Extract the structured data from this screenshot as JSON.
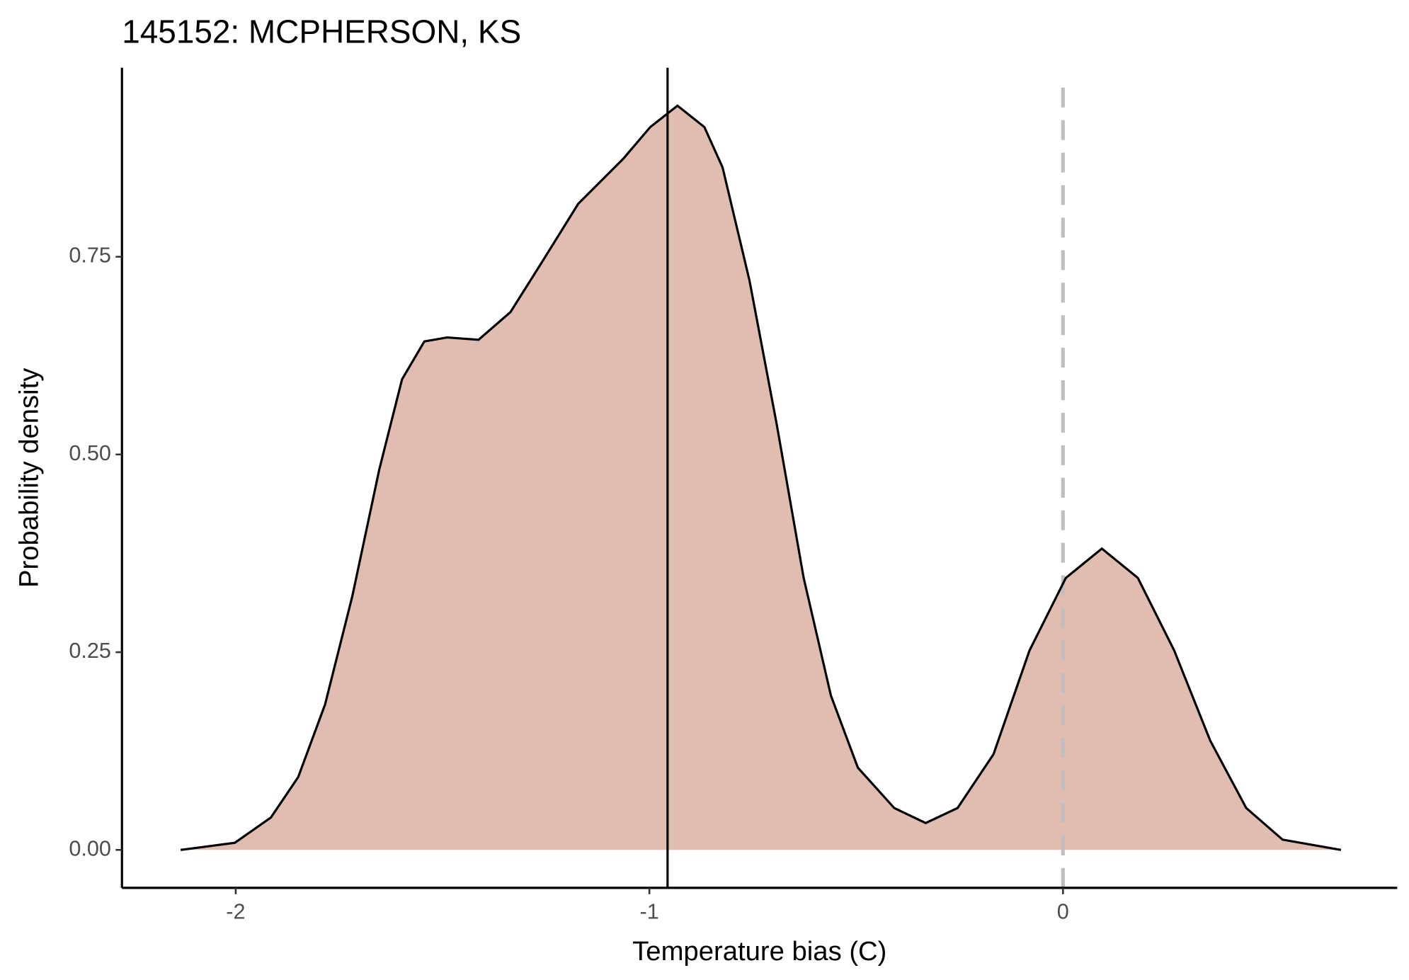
{
  "chart_data": {
    "type": "density",
    "title": "145152: MCPHERSON, KS",
    "x_label": "Temperature bias (C)",
    "y_label": "Probability density",
    "x": [
      -2.133,
      -2.002,
      -1.915,
      -1.849,
      -1.784,
      -1.718,
      -1.653,
      -1.598,
      -1.544,
      -1.489,
      -1.413,
      -1.336,
      -1.26,
      -1.172,
      -1.063,
      -0.998,
      -0.932,
      -0.867,
      -0.823,
      -0.758,
      -0.692,
      -0.627,
      -0.561,
      -0.496,
      -0.408,
      -0.332,
      -0.255,
      -0.168,
      -0.081,
      0.007,
      0.094,
      0.181,
      0.269,
      0.356,
      0.443,
      0.531,
      0.672
    ],
    "y": [
      0,
      0.009,
      0.041,
      0.092,
      0.184,
      0.321,
      0.481,
      0.595,
      0.643,
      0.648,
      0.645,
      0.68,
      0.743,
      0.817,
      0.874,
      0.914,
      0.941,
      0.914,
      0.863,
      0.72,
      0.538,
      0.344,
      0.195,
      0.104,
      0.053,
      0.034,
      0.053,
      0.121,
      0.252,
      0.344,
      0.381,
      0.344,
      0.252,
      0.138,
      0.053,
      0.013,
      0
    ],
    "fill_color": "#e1bcb0",
    "line_color": "#000000",
    "mean_line": -0.956,
    "reference_line": 0,
    "reference_color": "#bfbfbf",
    "xlim": [
      -2.275,
      0.808
    ],
    "ylim": [
      -0.048,
      0.989
    ],
    "xticks": [
      -2,
      -1,
      0
    ],
    "yticks": [
      {
        "value": 0,
        "label": "0.00"
      },
      {
        "value": 0.25,
        "label": "0.25"
      },
      {
        "value": 0.5,
        "label": "0.50"
      },
      {
        "value": 0.75,
        "label": "0.75"
      }
    ]
  }
}
